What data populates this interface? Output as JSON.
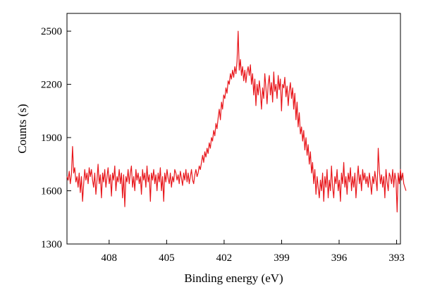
{
  "chart_data": {
    "type": "line",
    "title": "",
    "xlabel": "Binding energy (eV)",
    "ylabel": "Counts (s)",
    "xlim": [
      410.2,
      392.8
    ],
    "ylim": [
      1300,
      2600
    ],
    "x_reversed": true,
    "xticks": [
      408,
      405,
      402,
      399,
      396,
      393
    ],
    "xtick_labels": [
      "408",
      "405",
      "402",
      "399",
      "396",
      "393"
    ],
    "yticks": [
      1300,
      1600,
      1900,
      2200,
      2500
    ],
    "ytick_labels": [
      "1300",
      "1600",
      "1900",
      "2200",
      "2500"
    ],
    "grid": false,
    "series": [
      {
        "color": "#e8161b",
        "x_start": 410.2,
        "x_step": -0.058,
        "values": [
          1680,
          1660,
          1710,
          1640,
          1690,
          1850,
          1700,
          1730,
          1650,
          1680,
          1620,
          1700,
          1590,
          1680,
          1540,
          1640,
          1720,
          1660,
          1700,
          1640,
          1730,
          1680,
          1720,
          1660,
          1620,
          1700,
          1580,
          1660,
          1750,
          1640,
          1690,
          1560,
          1700,
          1650,
          1720,
          1620,
          1680,
          1730,
          1640,
          1690,
          1570,
          1700,
          1660,
          1740,
          1600,
          1680,
          1650,
          1720,
          1640,
          1700,
          1560,
          1690,
          1510,
          1680,
          1650,
          1720,
          1640,
          1700,
          1740,
          1620,
          1680,
          1600,
          1720,
          1660,
          1700,
          1640,
          1680,
          1580,
          1720,
          1660,
          1700,
          1620,
          1740,
          1650,
          1690,
          1540,
          1700,
          1660,
          1720,
          1640,
          1690,
          1600,
          1700,
          1650,
          1730,
          1600,
          1680,
          1540,
          1700,
          1650,
          1720,
          1670,
          1640,
          1700,
          1620,
          1680,
          1650,
          1720,
          1700,
          1660,
          1690,
          1640,
          1710,
          1670,
          1630,
          1700,
          1660,
          1720,
          1650,
          1700,
          1640,
          1680,
          1720,
          1660,
          1640,
          1690,
          1720,
          1680,
          1700,
          1740,
          1720,
          1760,
          1800,
          1760,
          1820,
          1790,
          1840,
          1810,
          1870,
          1840,
          1900,
          1880,
          1940,
          1910,
          1980,
          1950,
          2010,
          2060,
          2000,
          2100,
          2060,
          2140,
          2120,
          2180,
          2150,
          2220,
          2200,
          2260,
          2230,
          2280,
          2240,
          2300,
          2260,
          2330,
          2500,
          2280,
          2340,
          2250,
          2300,
          2220,
          2280,
          2210,
          2270,
          2300,
          2250,
          2310,
          2200,
          2260,
          2140,
          2230,
          2080,
          2200,
          2140,
          2220,
          2160,
          2060,
          2180,
          2120,
          2260,
          2180,
          2090,
          2200,
          2250,
          2140,
          2210,
          2100,
          2270,
          2160,
          2200,
          2120,
          2250,
          2170,
          2230,
          2050,
          2200,
          2180,
          2240,
          2130,
          2190,
          2080,
          2160,
          2210,
          2120,
          2180,
          2060,
          2150,
          2000,
          2100,
          1960,
          2040,
          1920,
          1960,
          1880,
          1940,
          1830,
          1900,
          1800,
          1860,
          1750,
          1820,
          1700,
          1760,
          1640,
          1720,
          1580,
          1680,
          1620,
          1560,
          1660,
          1600,
          1700,
          1540,
          1680,
          1620,
          1720,
          1560,
          1660,
          1600,
          1740,
          1620,
          1560,
          1680,
          1640,
          1720,
          1600,
          1660,
          1540,
          1700,
          1640,
          1760,
          1620,
          1680,
          1580,
          1700,
          1650,
          1730,
          1600,
          1680,
          1620,
          1700,
          1560,
          1660,
          1740,
          1640,
          1690,
          1600,
          1720,
          1660,
          1700,
          1640,
          1680,
          1620,
          1700,
          1650,
          1580,
          1680,
          1640,
          1710,
          1660,
          1600,
          1840,
          1720,
          1640,
          1690,
          1620,
          1680,
          1560,
          1720,
          1650,
          1600,
          1700,
          1680,
          1640,
          1720,
          1620,
          1700,
          1660,
          1480,
          1700,
          1640,
          1720,
          1660,
          1700,
          1640,
          1620,
          1600
        ]
      }
    ]
  }
}
